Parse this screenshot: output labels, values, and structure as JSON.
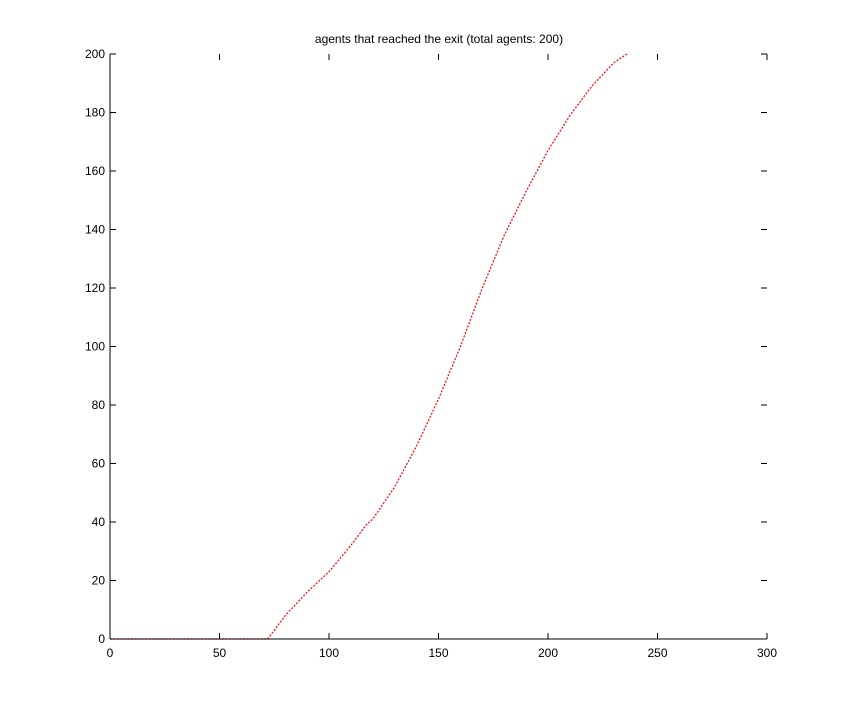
{
  "chart_data": {
    "type": "line",
    "title": "agents that reached the exit (total agents: 200)",
    "xlabel": "",
    "ylabel": "",
    "xlim": [
      0,
      300
    ],
    "ylim": [
      0,
      200
    ],
    "xticks": [
      "0",
      "50",
      "100",
      "150",
      "200",
      "250",
      "300"
    ],
    "yticks": [
      "0",
      "20",
      "40",
      "60",
      "80",
      "100",
      "120",
      "140",
      "160",
      "180",
      "200"
    ],
    "grid": false,
    "legend": "none",
    "series": [
      {
        "color": "#ff0000",
        "style": "dotted",
        "x": [
          0,
          72,
          80,
          90,
          100,
          110,
          117,
          120,
          130,
          140,
          150,
          160,
          170,
          180,
          190,
          200,
          210,
          220,
          230,
          236
        ],
        "y": [
          0,
          0,
          8,
          16,
          23,
          32,
          39,
          41,
          52,
          66,
          82,
          100,
          120,
          138,
          153,
          167,
          179,
          189,
          197,
          200
        ]
      }
    ]
  }
}
